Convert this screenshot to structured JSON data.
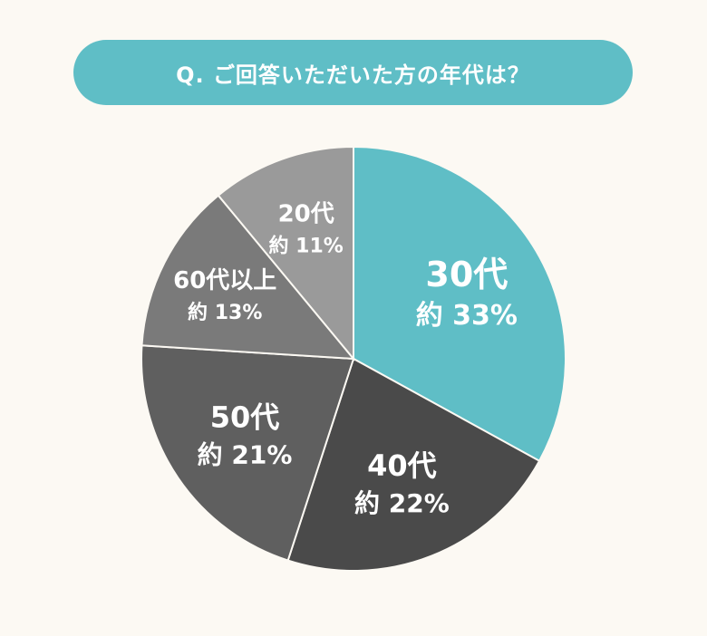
{
  "title": "Q. ご回答いただいた方の年代は？",
  "chart_data": {
    "type": "pie",
    "title": "Q. ご回答いただいた方の年代は？",
    "start_angle_deg": 0,
    "direction": "clockwise",
    "slices": [
      {
        "label": "30代",
        "value_label": "約 33%",
        "value": 33,
        "color": "#5fbec6"
      },
      {
        "label": "40代",
        "value_label": "約 22%",
        "value": 22,
        "color": "#4a4a4a"
      },
      {
        "label": "50代",
        "value_label": "約 21%",
        "value": 21,
        "color": "#5f5f5f"
      },
      {
        "label": "60代以上",
        "value_label": "約 13%",
        "value": 13,
        "color": "#7a7a7a"
      },
      {
        "label": "20代",
        "value_label": "約 11%",
        "value": 11,
        "color": "#9a9a9a"
      }
    ]
  }
}
